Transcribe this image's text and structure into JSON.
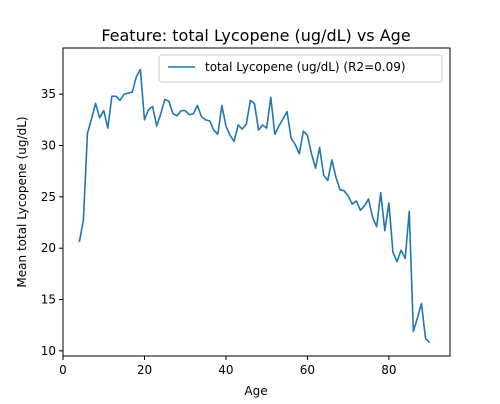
{
  "chart_data": {
    "type": "line",
    "title": "Feature: total Lycopene (ug/dL) vs Age",
    "xlabel": "Age",
    "ylabel": "Mean total Lycopene (ug/dL)",
    "xlim": [
      0,
      95
    ],
    "ylim": [
      9.5,
      39.5
    ],
    "xticks": [
      0,
      20,
      40,
      60,
      80
    ],
    "yticks": [
      10,
      15,
      20,
      25,
      30,
      35
    ],
    "grid": false,
    "legend": "top-right",
    "series": [
      {
        "name": "total Lycopene (ug/dL) (R2=0.09)",
        "color": "#1f77b4",
        "x": [
          4,
          5,
          6,
          7,
          8,
          9,
          10,
          11,
          12,
          13,
          14,
          15,
          16,
          17,
          18,
          19,
          20,
          21,
          22,
          23,
          24,
          25,
          26,
          27,
          28,
          29,
          30,
          31,
          32,
          33,
          34,
          35,
          36,
          37,
          38,
          39,
          40,
          41,
          42,
          43,
          44,
          45,
          46,
          47,
          48,
          49,
          50,
          51,
          52,
          53,
          54,
          55,
          56,
          57,
          58,
          59,
          60,
          61,
          62,
          63,
          64,
          65,
          66,
          67,
          68,
          69,
          70,
          71,
          72,
          73,
          74,
          75,
          76,
          77,
          78,
          79,
          80,
          81,
          82,
          83,
          84,
          85,
          86,
          87,
          88,
          89,
          90
        ],
        "y": [
          20.6,
          22.7,
          31.2,
          32.6,
          34.1,
          32.7,
          33.4,
          31.7,
          34.8,
          34.8,
          34.4,
          35.0,
          35.1,
          35.2,
          36.7,
          37.4,
          32.5,
          33.5,
          33.8,
          31.9,
          33.1,
          34.5,
          34.3,
          33.1,
          32.9,
          33.4,
          33.4,
          33.0,
          33.1,
          33.9,
          32.8,
          32.5,
          32.4,
          31.5,
          31.1,
          33.9,
          31.9,
          31.0,
          30.4,
          32.0,
          31.6,
          32.1,
          34.4,
          34.1,
          31.5,
          32.0,
          31.7,
          34.7,
          31.1,
          31.9,
          32.6,
          33.3,
          30.7,
          30.1,
          29.2,
          31.4,
          31.0,
          29.2,
          27.8,
          29.8,
          27.1,
          26.6,
          28.6,
          26.9,
          25.7,
          25.6,
          25.1,
          24.3,
          24.6,
          23.7,
          24.1,
          24.8,
          23.0,
          22.1,
          25.4,
          21.7,
          24.4,
          19.6,
          18.7,
          19.8,
          19.0,
          23.6,
          11.9,
          13.2,
          14.6,
          11.2,
          10.8
        ]
      }
    ]
  }
}
